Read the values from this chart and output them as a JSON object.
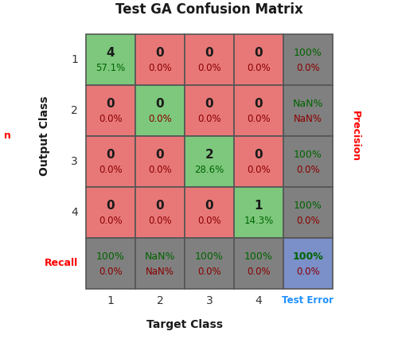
{
  "title": "Test GA Confusion Matrix",
  "xlabel": "Target Class",
  "ylabel": "Output Class",
  "matrix": [
    [
      4,
      0,
      0,
      0
    ],
    [
      0,
      0,
      0,
      0
    ],
    [
      0,
      0,
      2,
      0
    ],
    [
      0,
      0,
      0,
      1
    ]
  ],
  "matrix_pct": [
    [
      "57.1%",
      "0.0%",
      "0.0%",
      "0.0%"
    ],
    [
      "0.0%",
      "0.0%",
      "0.0%",
      "0.0%"
    ],
    [
      "0.0%",
      "0.0%",
      "28.6%",
      "0.0%"
    ],
    [
      "0.0%",
      "0.0%",
      "0.0%",
      "14.3%"
    ]
  ],
  "recall_top": [
    "100%",
    "NaN%",
    "100%",
    "100%"
  ],
  "recall_bot": [
    "0.0%",
    "NaN%",
    "0.0%",
    "0.0%"
  ],
  "precision_top": [
    "100%",
    "NaN%",
    "100%",
    "100%"
  ],
  "precision_bot": [
    "0.0%",
    "NaN%",
    "0.0%",
    "0.0%"
  ],
  "overall_top": "100%",
  "overall_bot": "0.0%",
  "cell_colors": {
    "diagonal": "#7DC87D",
    "off_diagonal": "#E87878",
    "summary": "#808080",
    "overall": "#7B8FC8"
  },
  "text_green": "#006400",
  "text_darkred": "#8B0000",
  "text_black": "#1a1a1a",
  "row_labels": [
    "1",
    "2",
    "3",
    "4"
  ],
  "col_labels": [
    "1",
    "2",
    "3",
    "4"
  ],
  "recall_label": "Recall",
  "precision_label": "Precision",
  "test_error_label": "Test Error",
  "n_clipped": "n"
}
